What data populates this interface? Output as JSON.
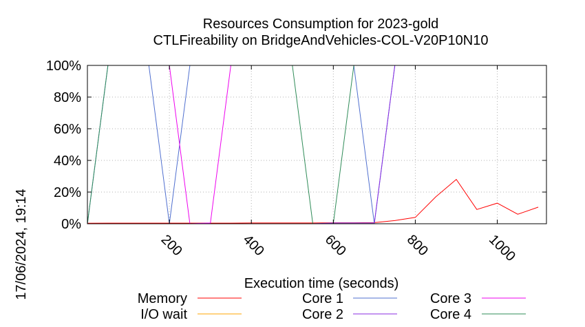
{
  "chart_data": {
    "type": "line",
    "title": "Resources Consumption for 2023-gold",
    "subtitle": "CTLFireability on BridgeAndVehicles-COL-V20P10N10",
    "xlabel": "Execution time (seconds)",
    "ylabel": "",
    "side_label": "17/06/2024, 19:14",
    "xlim": [
      0,
      1120
    ],
    "ylim": [
      0,
      100
    ],
    "x_ticks": [
      200,
      400,
      600,
      800,
      1000
    ],
    "x_tick_labels": [
      "200",
      "400",
      "600",
      "800",
      "1000"
    ],
    "y_ticks": [
      0,
      20,
      40,
      60,
      80,
      100
    ],
    "y_tick_labels": [
      "0%",
      "20%",
      "40%",
      "60%",
      "80%",
      "100%"
    ],
    "grid": true,
    "legend_position": "bottom",
    "series": [
      {
        "name": "Memory",
        "color": "#ff0000",
        "x": [
          0,
          50,
          100,
          150,
          200,
          250,
          300,
          350,
          400,
          450,
          500,
          550,
          600,
          650,
          700,
          750,
          800,
          850,
          900,
          950,
          1000,
          1050,
          1100
        ],
        "y": [
          0.3,
          0.4,
          0.4,
          0.4,
          0.4,
          0.4,
          0.4,
          0.4,
          0.5,
          0.5,
          0.5,
          0.5,
          0.6,
          0.6,
          0.7,
          2,
          4,
          17,
          28,
          9,
          13,
          6,
          10.5
        ]
      },
      {
        "name": "I/O wait",
        "color": "#ffa500",
        "x": [
          0,
          1100
        ],
        "y": [
          0,
          0
        ]
      },
      {
        "name": "Core 1",
        "color": "#4f6fcf",
        "x": [
          0,
          50,
          150,
          200,
          250,
          300,
          650,
          700,
          750,
          800,
          1100
        ],
        "y": [
          0,
          100,
          100,
          0,
          100,
          100,
          100,
          0,
          100,
          100,
          100
        ]
      },
      {
        "name": "Core 2",
        "color": "#8a2be2",
        "x": [
          0,
          550,
          600,
          700,
          750
        ],
        "y": [
          0,
          0,
          0.5,
          0.5,
          100
        ]
      },
      {
        "name": "Core 3",
        "color": "#ee00ee",
        "x": [
          200,
          250,
          300,
          350,
          500,
          700
        ],
        "y": [
          100,
          0,
          0.5,
          100,
          100,
          100
        ]
      },
      {
        "name": "Core 4",
        "color": "#2e8b57",
        "x": [
          0,
          50,
          500,
          550,
          600,
          650,
          700,
          1100
        ],
        "y": [
          0,
          100,
          100,
          0,
          0,
          100,
          100,
          100
        ]
      }
    ]
  }
}
